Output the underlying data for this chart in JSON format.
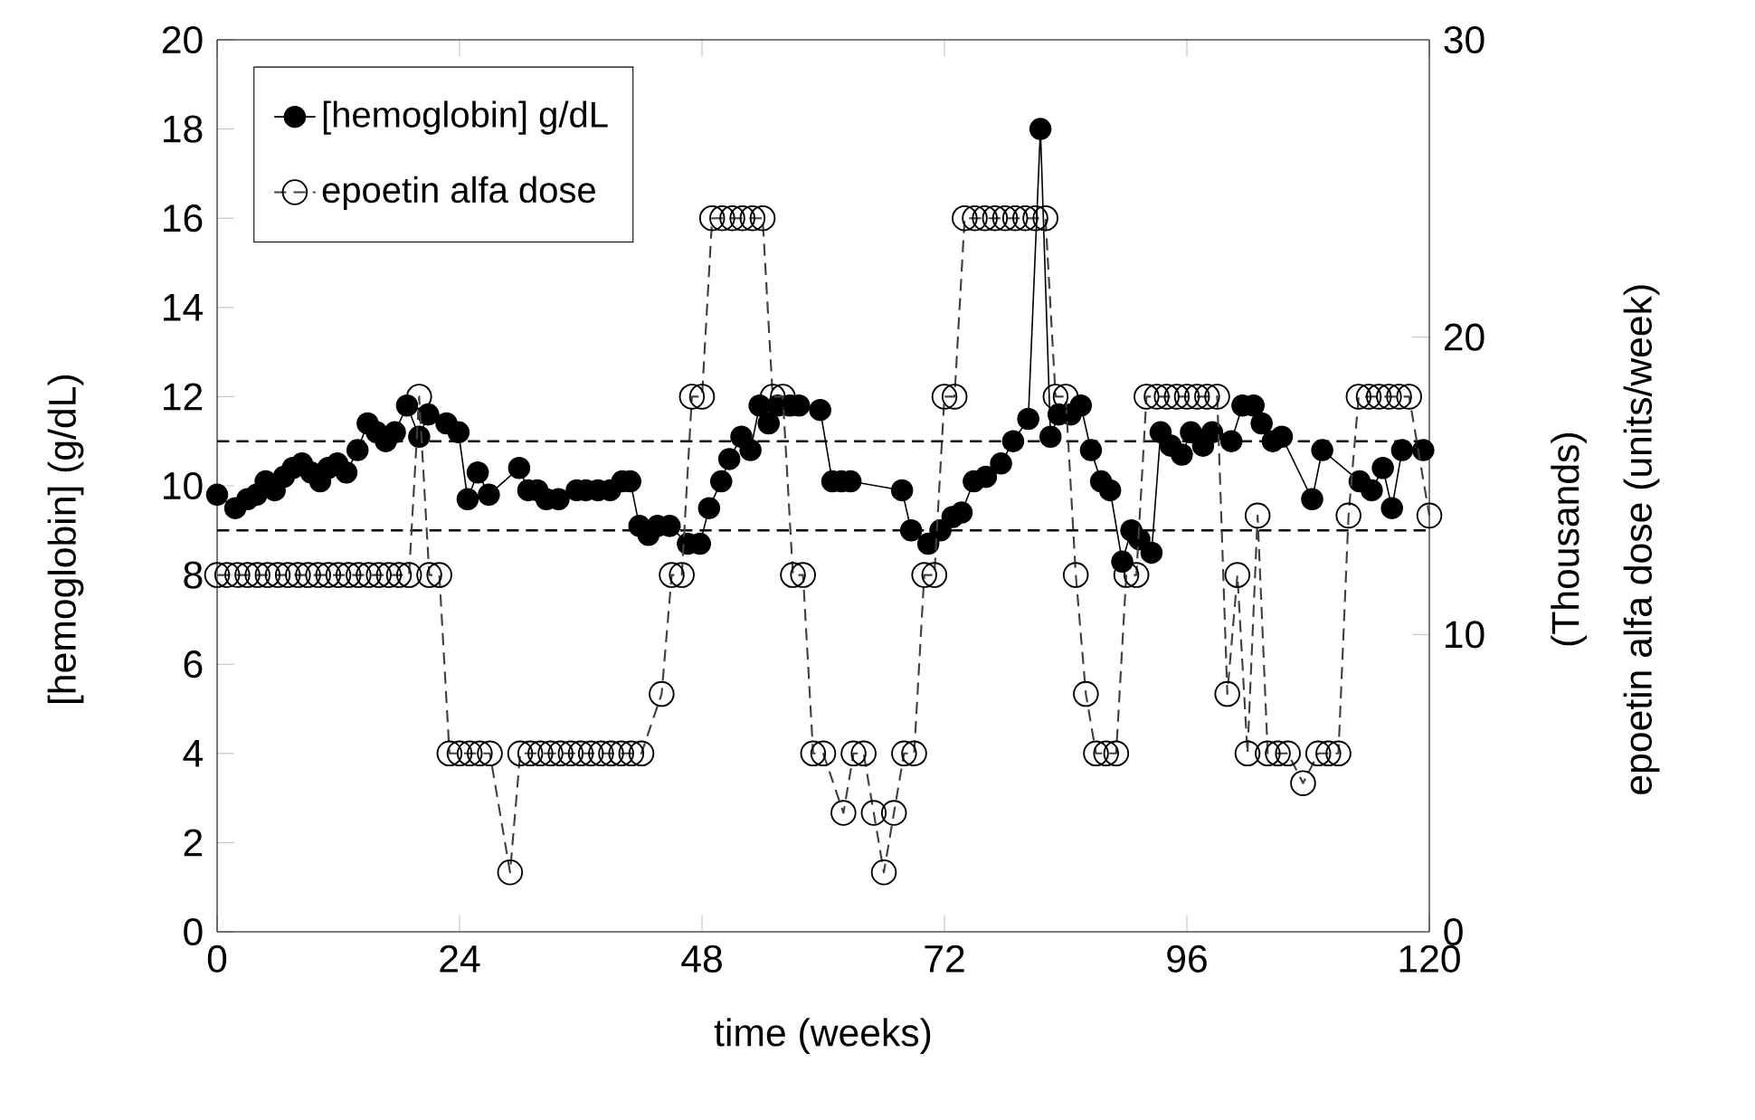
{
  "chart_data": {
    "type": "line",
    "xlabel": "time (weeks)",
    "ylabel": "[hemoglobin] (g/dL)",
    "y2label": "epoetin alfa dose (units/week)",
    "annotations": [
      "(Thousands)"
    ],
    "xlim": [
      0,
      120
    ],
    "xticks": [
      0,
      24,
      48,
      72,
      96,
      120
    ],
    "ylim": [
      0,
      20
    ],
    "yticks": [
      0,
      2,
      4,
      6,
      8,
      10,
      12,
      14,
      16,
      18,
      20
    ],
    "y2lim": [
      0,
      30
    ],
    "y2ticks": [
      0,
      10,
      20,
      30
    ],
    "legend": "top left",
    "grid": false,
    "marker": "circle",
    "ref_lines": [
      {
        "axis": "y",
        "value": 11,
        "color": "#000000",
        "line_style": "dashed"
      },
      {
        "axis": "y",
        "value": 9,
        "color": "#000000",
        "line_style": "dashed"
      }
    ],
    "series": [
      {
        "name": "[hemoglobin] g/dL",
        "color": "#000000",
        "line_style": "solid",
        "x": [
          0,
          1.8,
          3.0,
          3.9,
          4.8,
          5.7,
          6.6,
          7.5,
          8.4,
          9.3,
          10.2,
          11.0,
          11.9,
          12.8,
          13.9,
          14.9,
          15.8,
          16.7,
          17.6,
          18.8,
          20.0,
          20.9,
          22.7,
          23.9,
          24.8,
          25.8,
          26.9,
          29.9,
          30.8,
          31.7,
          32.6,
          33.8,
          35.6,
          36.5,
          37.7,
          38.9,
          40.1,
          40.9,
          41.8,
          42.7,
          43.6,
          44.8,
          46.6,
          47.8,
          48.7,
          49.9,
          50.7,
          51.9,
          52.8,
          53.7,
          54.6,
          55.5,
          56.7,
          57.6,
          59.7,
          60.9,
          61.8,
          62.7,
          67.8,
          68.7,
          70.4,
          71.6,
          72.8,
          73.7,
          74.9,
          76.1,
          77.6,
          78.8,
          80.3,
          81.5,
          82.5,
          83.3,
          84.5,
          85.5,
          86.5,
          87.5,
          88.4,
          89.6,
          90.5,
          91.3,
          92.5,
          93.4,
          94.4,
          95.5,
          96.4,
          97.6,
          98.5,
          100.4,
          101.5,
          102.6,
          103.4,
          104.5,
          105.4,
          108.4,
          109.4,
          113.1,
          114.3,
          115.4,
          116.3,
          117.3,
          119.4
        ],
        "values": [
          9.8,
          9.5,
          9.7,
          9.8,
          10.1,
          9.9,
          10.2,
          10.4,
          10.5,
          10.3,
          10.1,
          10.4,
          10.5,
          10.3,
          10.8,
          11.4,
          11.2,
          11.0,
          11.2,
          11.8,
          11.1,
          11.6,
          11.4,
          11.2,
          9.7,
          10.3,
          9.8,
          10.4,
          9.9,
          9.9,
          9.7,
          9.7,
          9.9,
          9.9,
          9.9,
          9.9,
          10.1,
          10.1,
          9.1,
          8.9,
          9.1,
          9.1,
          8.7,
          8.7,
          9.5,
          10.1,
          10.6,
          11.1,
          10.8,
          11.8,
          11.4,
          11.8,
          11.8,
          11.8,
          11.7,
          10.1,
          10.1,
          10.1,
          9.9,
          9.0,
          8.7,
          9.0,
          9.3,
          9.4,
          10.1,
          10.2,
          10.5,
          11.0,
          11.5,
          18,
          11.1,
          11.6,
          11.6,
          11.8,
          10.8,
          10.1,
          9.9,
          8.3,
          9.0,
          8.8,
          8.5,
          11.2,
          10.9,
          10.7,
          11.2,
          10.9,
          11.2,
          11.0,
          11.8,
          11.8,
          11.4,
          11.0,
          11.1,
          9.7,
          10.8,
          10.1,
          9.9,
          10.4,
          9.5,
          10.8,
          10.8
        ]
      },
      {
        "name": "epoetin alfa dose",
        "color": "#404040",
        "line_style": "dashed",
        "axis": "y2",
        "x": [
          0,
          1,
          2,
          3,
          4,
          5,
          6,
          7,
          8,
          9,
          10,
          11,
          12,
          13,
          14,
          15,
          16,
          17,
          18,
          19,
          20,
          21,
          22,
          23,
          24,
          25,
          26,
          27,
          29,
          30,
          31,
          32,
          33,
          34,
          35,
          36,
          37,
          38,
          39,
          40,
          41,
          42,
          44,
          45,
          46,
          47,
          48,
          49,
          50,
          51,
          52,
          53,
          54,
          55,
          56,
          57,
          58,
          59,
          60,
          62,
          63,
          64,
          65,
          66,
          67,
          68,
          69,
          70,
          71,
          72,
          73,
          74,
          75,
          76,
          77,
          78,
          79,
          80,
          81,
          82,
          83,
          84,
          85,
          86,
          87,
          88,
          89,
          90,
          91,
          92,
          93,
          94,
          95,
          96,
          97,
          98,
          99,
          100,
          101,
          102,
          103,
          104,
          105,
          106,
          107.5,
          109,
          110,
          111,
          112,
          113,
          114,
          115,
          116,
          117,
          118,
          120
        ],
        "values": [
          12,
          12,
          12,
          12,
          12,
          12,
          12,
          12,
          12,
          12,
          12,
          12,
          12,
          12,
          12,
          12,
          12,
          12,
          12,
          12,
          18,
          12,
          12,
          6,
          6,
          6,
          6,
          6,
          2,
          6,
          6,
          6,
          6,
          6,
          6,
          6,
          6,
          6,
          6,
          6,
          6,
          6,
          8,
          12,
          12,
          18,
          18,
          24,
          24,
          24,
          24,
          24,
          24,
          18,
          18,
          12,
          12,
          6,
          6,
          4,
          6,
          6,
          4,
          2,
          4,
          6,
          6,
          12,
          12,
          18,
          18,
          24,
          24,
          24,
          24,
          24,
          24,
          24,
          24,
          24,
          18,
          18,
          12,
          8,
          6,
          6,
          6,
          12,
          12,
          18,
          18,
          18,
          18,
          18,
          18,
          18,
          18,
          8,
          12,
          6,
          14,
          6,
          6,
          6,
          5,
          6,
          6,
          6,
          14,
          18,
          18,
          18,
          18,
          18,
          18,
          14
        ]
      }
    ]
  }
}
